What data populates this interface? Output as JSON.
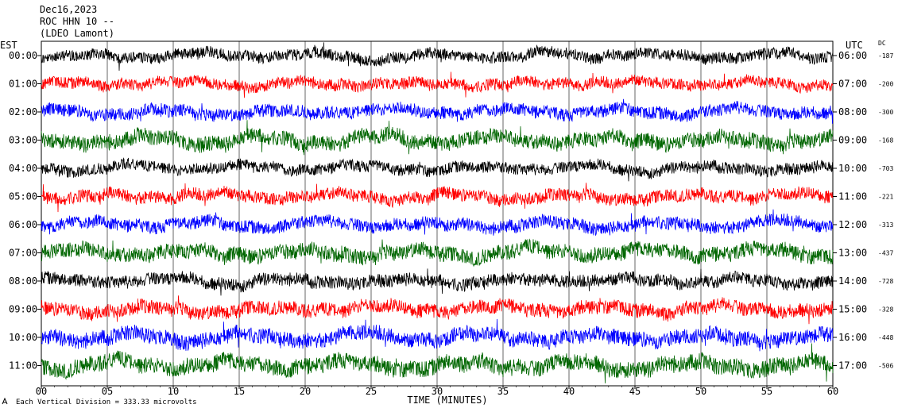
{
  "header": {
    "date": "Dec16,2023",
    "station": "ROC HHN 10 --",
    "network": "(LDEO Lamont)"
  },
  "chart_data": {
    "type": "line",
    "subtype": "helicorder",
    "left_axis_label": "EST",
    "right_axis_label": "UTC",
    "dc_header": "DC",
    "xlabel": "TIME (MINUTES)",
    "xlim": [
      0,
      60
    ],
    "x_ticks": [
      "00",
      "05",
      "10",
      "15",
      "20",
      "25",
      "30",
      "35",
      "40",
      "45",
      "50",
      "55",
      "60"
    ],
    "footer": "Each Vertical Division = 333.33 microvolts",
    "grid": true,
    "rows": [
      {
        "local": "00:00",
        "utc": "06:00",
        "dc": "-187",
        "color": "#000000",
        "amplitude": 9
      },
      {
        "local": "01:00",
        "utc": "07:00",
        "dc": "-200",
        "color": "#ff0000",
        "amplitude": 9
      },
      {
        "local": "02:00",
        "utc": "08:00",
        "dc": "-300",
        "color": "#0000ff",
        "amplitude": 10
      },
      {
        "local": "03:00",
        "utc": "09:00",
        "dc": "-168",
        "color": "#006600",
        "amplitude": 12
      },
      {
        "local": "04:00",
        "utc": "10:00",
        "dc": "-703",
        "color": "#000000",
        "amplitude": 9
      },
      {
        "local": "05:00",
        "utc": "11:00",
        "dc": "-221",
        "color": "#ff0000",
        "amplitude": 10
      },
      {
        "local": "06:00",
        "utc": "12:00",
        "dc": "-313",
        "color": "#0000ff",
        "amplitude": 10
      },
      {
        "local": "07:00",
        "utc": "13:00",
        "dc": "-437",
        "color": "#006600",
        "amplitude": 12
      },
      {
        "local": "08:00",
        "utc": "14:00",
        "dc": "-728",
        "color": "#000000",
        "amplitude": 10
      },
      {
        "local": "09:00",
        "utc": "15:00",
        "dc": "-328",
        "color": "#ff0000",
        "amplitude": 11
      },
      {
        "local": "10:00",
        "utc": "16:00",
        "dc": "-448",
        "color": "#0000ff",
        "amplitude": 12
      },
      {
        "local": "11:00",
        "utc": "17:00",
        "dc": "-506",
        "color": "#006600",
        "amplitude": 13
      }
    ]
  }
}
